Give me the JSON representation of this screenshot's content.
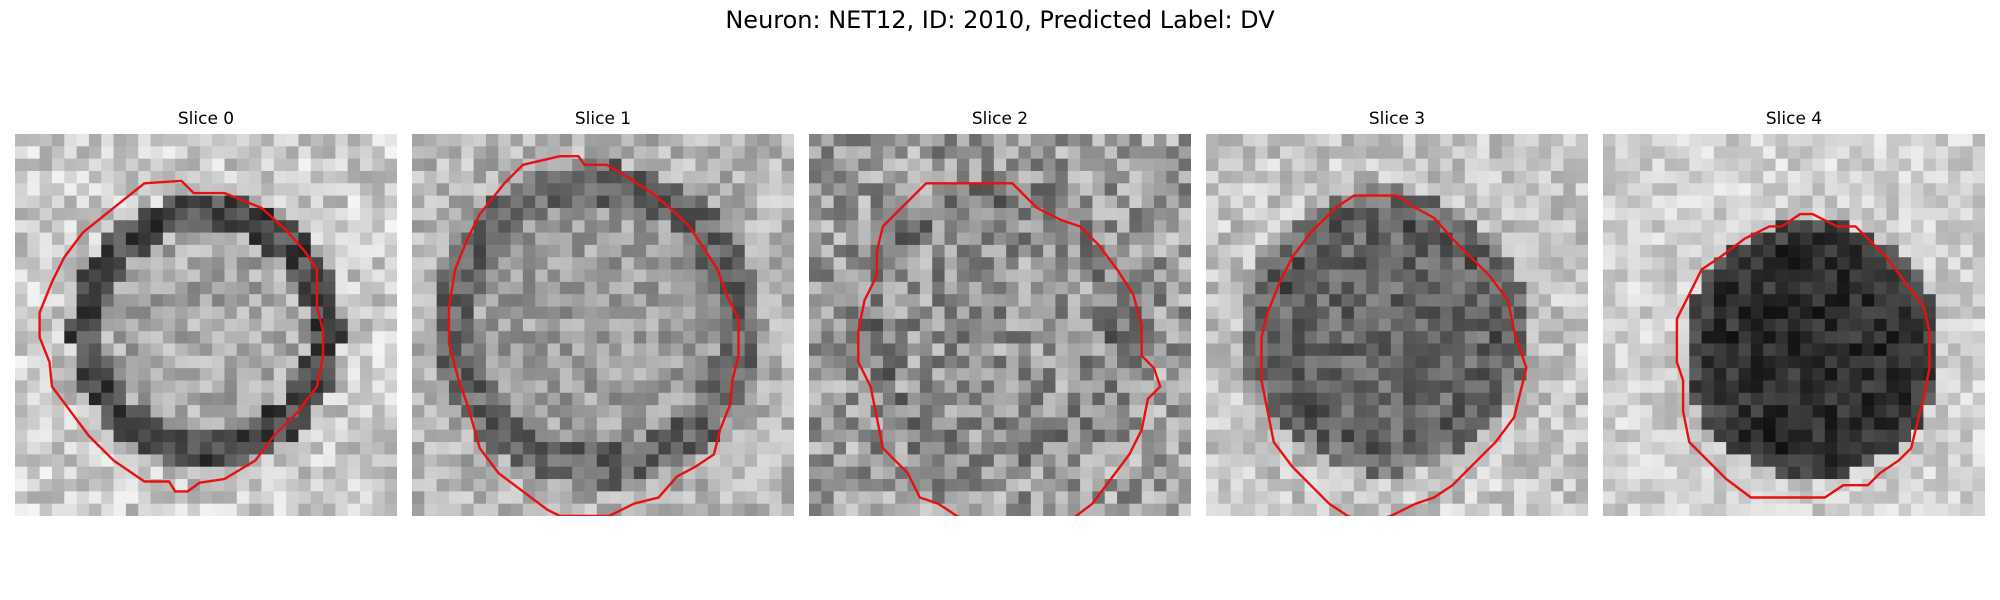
{
  "figure": {
    "title": "Neuron: NET12, ID: 2010, Predicted Label: DV",
    "outline_color": "#e81010",
    "panels": [
      {
        "title": "Slice 0"
      },
      {
        "title": "Slice 1"
      },
      {
        "title": "Slice 2"
      },
      {
        "title": "Slice 3"
      },
      {
        "title": "Slice 4"
      }
    ]
  }
}
